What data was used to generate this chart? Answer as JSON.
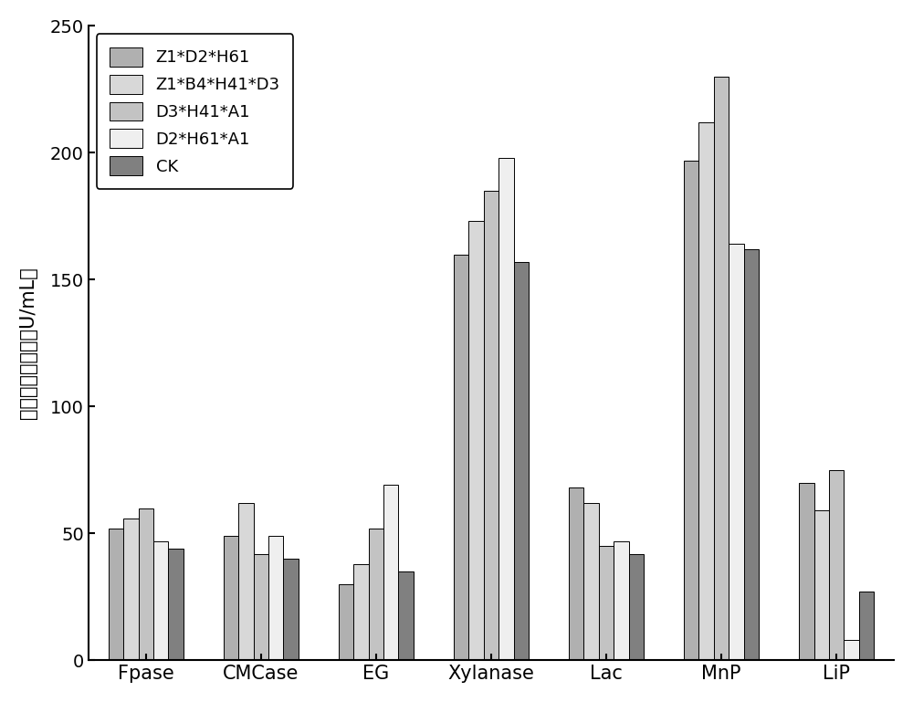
{
  "categories": [
    "Fpase",
    "CMCase",
    "EG",
    "Xylanase",
    "Lac",
    "MnP",
    "LiP"
  ],
  "series": [
    {
      "label": "Z1*D2*H61",
      "color": "#b0b0b0",
      "values": [
        52,
        49,
        30,
        160,
        68,
        197,
        70
      ]
    },
    {
      "label": "Z1*B4*H41*D3",
      "color": "#d8d8d8",
      "values": [
        56,
        62,
        38,
        173,
        62,
        212,
        59
      ]
    },
    {
      "label": "D3*H41*A1",
      "color": "#c3c3c3",
      "values": [
        60,
        42,
        52,
        185,
        45,
        230,
        75
      ]
    },
    {
      "label": "D2*H61*A1",
      "color": "#efefef",
      "values": [
        47,
        49,
        69,
        198,
        47,
        164,
        8
      ]
    },
    {
      "label": "CK",
      "color": "#808080",
      "values": [
        44,
        40,
        35,
        157,
        42,
        162,
        27
      ]
    }
  ],
  "ylim": [
    0,
    250
  ],
  "yticks": [
    0,
    50,
    100,
    150,
    200,
    250
  ],
  "ylabel": "木质纤维素酶活（U/mL）",
  "xlabel": "",
  "title": "",
  "legend_position": "upper left",
  "bar_width": 0.13,
  "figsize": [
    10.0,
    7.69
  ],
  "dpi": 100,
  "bg_color": "#ffffff"
}
